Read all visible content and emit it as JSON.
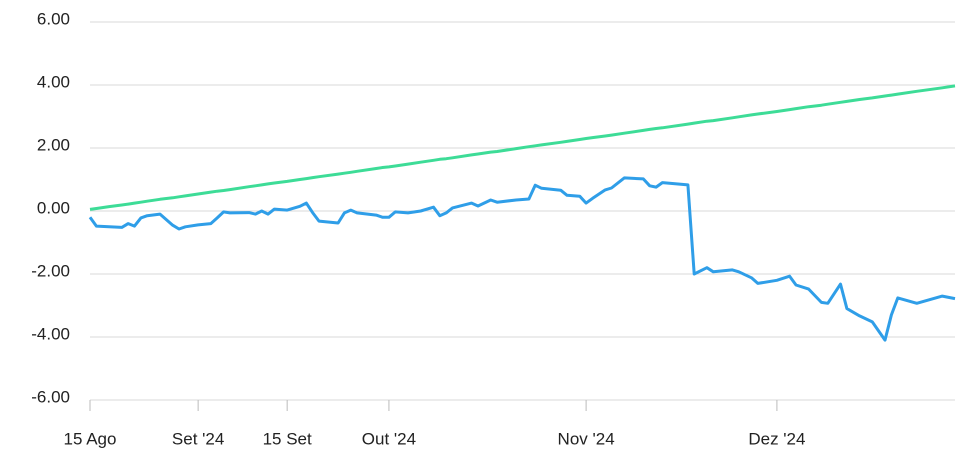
{
  "chart_data": {
    "type": "line",
    "x": [
      "2024-08-15",
      "2024-08-16",
      "2024-08-18",
      "2024-08-20",
      "2024-08-21",
      "2024-08-22",
      "2024-08-23",
      "2024-08-24",
      "2024-08-26",
      "2024-08-28",
      "2024-08-29",
      "2024-08-30",
      "2024-09-01",
      "2024-09-03",
      "2024-09-04",
      "2024-09-05",
      "2024-09-06",
      "2024-09-09",
      "2024-09-10",
      "2024-09-11",
      "2024-09-12",
      "2024-09-13",
      "2024-09-15",
      "2024-09-17",
      "2024-09-18",
      "2024-09-19",
      "2024-09-20",
      "2024-09-23",
      "2024-09-24",
      "2024-09-25",
      "2024-09-26",
      "2024-09-29",
      "2024-09-30",
      "2024-10-01",
      "2024-10-02",
      "2024-10-04",
      "2024-10-06",
      "2024-10-08",
      "2024-10-09",
      "2024-10-10",
      "2024-10-11",
      "2024-10-14",
      "2024-10-15",
      "2024-10-17",
      "2024-10-18",
      "2024-10-21",
      "2024-10-23",
      "2024-10-24",
      "2024-10-25",
      "2024-10-28",
      "2024-10-29",
      "2024-10-31",
      "2024-11-01",
      "2024-11-02",
      "2024-11-04",
      "2024-11-05",
      "2024-11-07",
      "2024-11-10",
      "2024-11-11",
      "2024-11-12",
      "2024-11-13",
      "2024-11-17",
      "2024-11-18",
      "2024-11-20",
      "2024-11-21",
      "2024-11-24",
      "2024-11-25",
      "2024-11-27",
      "2024-11-28",
      "2024-12-01",
      "2024-12-03",
      "2024-12-04",
      "2024-12-06",
      "2024-12-08",
      "2024-12-09",
      "2024-12-11",
      "2024-12-12",
      "2024-12-14",
      "2024-12-16",
      "2024-12-18",
      "2024-12-19",
      "2024-12-20",
      "2024-12-23",
      "2024-12-27",
      "2024-12-29"
    ],
    "series": [
      {
        "color": "#3ddc97",
        "values": [
          0.05,
          0.08,
          0.14,
          0.19,
          0.22,
          0.25,
          0.28,
          0.31,
          0.37,
          0.42,
          0.45,
          0.48,
          0.54,
          0.6,
          0.63,
          0.65,
          0.68,
          0.77,
          0.8,
          0.83,
          0.86,
          0.89,
          0.94,
          1.0,
          1.03,
          1.06,
          1.09,
          1.17,
          1.2,
          1.23,
          1.26,
          1.35,
          1.38,
          1.4,
          1.43,
          1.49,
          1.55,
          1.61,
          1.64,
          1.66,
          1.69,
          1.78,
          1.81,
          1.87,
          1.89,
          1.98,
          2.04,
          2.07,
          2.1,
          2.18,
          2.21,
          2.27,
          2.3,
          2.33,
          2.38,
          2.41,
          2.47,
          2.56,
          2.59,
          2.62,
          2.64,
          2.76,
          2.79,
          2.85,
          2.87,
          2.96,
          2.99,
          3.05,
          3.08,
          3.16,
          3.22,
          3.25,
          3.31,
          3.36,
          3.39,
          3.45,
          3.48,
          3.54,
          3.59,
          3.65,
          3.68,
          3.71,
          3.8,
          3.91,
          3.97
        ]
      },
      {
        "color": "#2f9ee8",
        "values": [
          -0.2,
          -0.48,
          -0.5,
          -0.52,
          -0.4,
          -0.48,
          -0.22,
          -0.15,
          -0.1,
          -0.45,
          -0.57,
          -0.5,
          -0.44,
          -0.4,
          -0.22,
          -0.03,
          -0.06,
          -0.05,
          -0.1,
          0,
          -0.1,
          0.06,
          0.03,
          0.15,
          0.25,
          -0.05,
          -0.32,
          -0.38,
          -0.06,
          0.03,
          -0.06,
          -0.13,
          -0.2,
          -0.2,
          -0.03,
          -0.06,
          0,
          0.12,
          -0.15,
          -0.06,
          0.1,
          0.25,
          0.16,
          0.35,
          0.28,
          0.35,
          0.38,
          0.82,
          0.72,
          0.66,
          0.5,
          0.47,
          0.25,
          0.4,
          0.67,
          0.73,
          1.05,
          1.02,
          0.8,
          0.76,
          0.9,
          0.83,
          -2.0,
          -1.8,
          -1.93,
          -1.87,
          -1.93,
          -2.12,
          -2.3,
          -2.2,
          -2.07,
          -2.35,
          -2.48,
          -2.9,
          -2.93,
          -2.32,
          -3.1,
          -3.33,
          -3.52,
          -4.1,
          -3.3,
          -2.76,
          -2.93,
          -2.7,
          -2.78
        ]
      }
    ],
    "xlim": [
      "2024-08-15",
      "2024-12-29"
    ],
    "xticks": [
      {
        "value": "2024-08-15",
        "label": "15 Ago"
      },
      {
        "value": "2024-09-01",
        "label": "Set '24"
      },
      {
        "value": "2024-09-15",
        "label": "15 Set"
      },
      {
        "value": "2024-10-01",
        "label": "Out '24"
      },
      {
        "value": "2024-11-01",
        "label": "Nov '24"
      },
      {
        "value": "2024-12-01",
        "label": "Dez '24"
      }
    ],
    "ylim": [
      -6,
      6
    ],
    "yticks": [
      {
        "value": -6,
        "label": "-6.00"
      },
      {
        "value": -4,
        "label": "-4.00"
      },
      {
        "value": -2,
        "label": "-2.00"
      },
      {
        "value": 0,
        "label": "0.00"
      },
      {
        "value": 2,
        "label": "2.00"
      },
      {
        "value": 4,
        "label": "4.00"
      },
      {
        "value": 6,
        "label": "6.00"
      }
    ],
    "grid": true
  }
}
